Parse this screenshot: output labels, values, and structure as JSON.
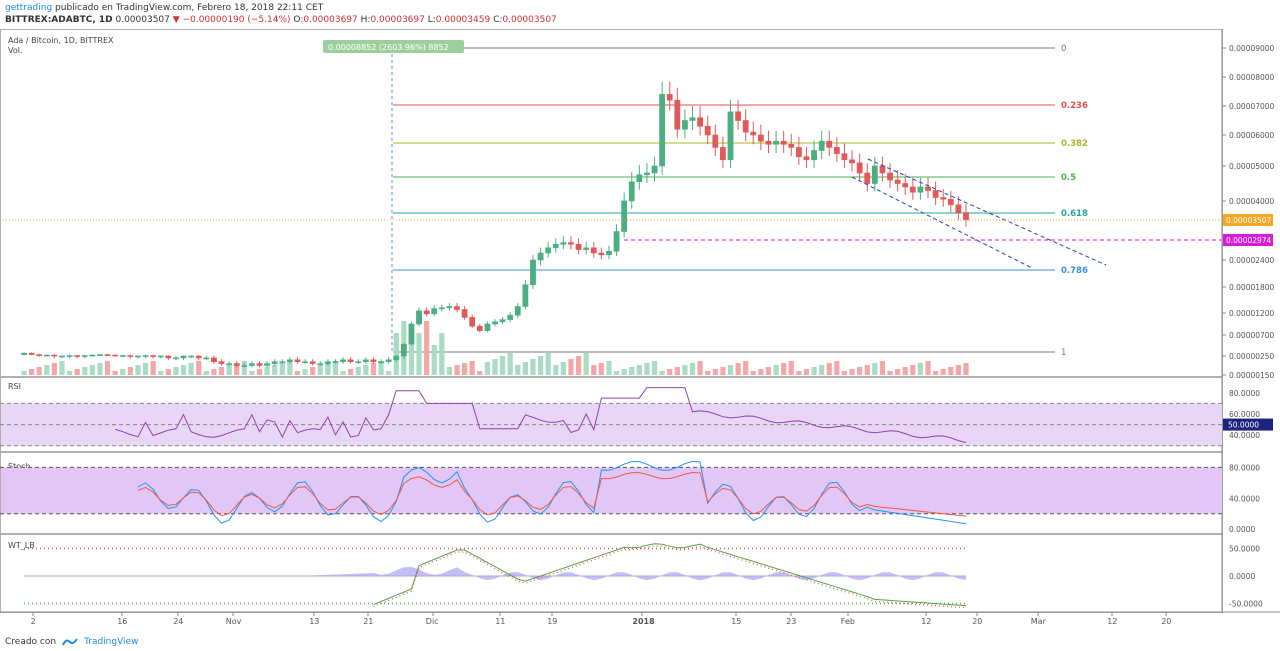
{
  "header": {
    "user": "gettrading",
    "published": "publicado en TradingView.com, Febrero 18, 2018 22:11 CET",
    "ticker": "BITTREX:ADABTC, 1D",
    "last": "0.00003507",
    "change": "−0.00000190 (−5.14%)",
    "ohlc": {
      "o_label": "O:",
      "o": "0.00003697",
      "h_label": "H:",
      "h": "0.00003697",
      "l_label": "L:",
      "l": "0.00003459",
      "c_label": "C:",
      "c": "0.00003507"
    }
  },
  "pane_titles": {
    "main": "Ada / Bitcoin, 1D, BITTREX",
    "vol": "Vol.",
    "rsi": "RSI",
    "stoch": "Stoch",
    "wt": "WT_LB"
  },
  "measure_label": "0.00008852 (2603.96%) 8852",
  "footer": {
    "created": "Creado con",
    "brand": "TradingView"
  },
  "colors": {
    "up": "#4caf82",
    "down": "#e05a5a",
    "up_fill": "#a9dbc5",
    "down_fill": "#f3a7a7",
    "rsi": "#8e44ad",
    "rsi_band": "#e9d5f5",
    "stoch_band": "#e2c6f6",
    "stoch_k": "#2196f3",
    "stoch_d": "#f05a4a",
    "wt1": "#5aa04a",
    "wt2": "#e05050",
    "wt_hist": "#a9a4f0",
    "channel": "#2541b2",
    "price_line": "#f5a623",
    "magenta": "#d81bd8"
  },
  "chart_data": [
    {
      "type": "candlestick",
      "title": "Ada / Bitcoin, 1D, BITTREX",
      "y_axis_ticks": [
        "0.00009000",
        "0.00008000",
        "0.00007000",
        "0.00006000",
        "0.00005000",
        "0.00004000",
        "0.00003507",
        "0.00002974",
        "0.00002400",
        "0.00001800",
        "0.00001200",
        "0.00000700",
        "0.00000250",
        "0.00000150"
      ],
      "last_price": "0.00003507",
      "marker_price": "0.00002974",
      "x_axis_ticks": [
        "2",
        "16",
        "24",
        "Nov",
        "13",
        "21",
        "Dic",
        "11",
        "19",
        "2018",
        "15",
        "23",
        "Feb",
        "12",
        "20",
        "Mar",
        "12",
        "20"
      ],
      "fibonacci_levels": [
        {
          "label": "0",
          "color": "#777777"
        },
        {
          "label": "0.236",
          "color": "#e05050"
        },
        {
          "label": "0.382",
          "color": "#a8b820"
        },
        {
          "label": "0.5",
          "color": "#4caf50"
        },
        {
          "label": "0.618",
          "color": "#26a69a"
        },
        {
          "label": "0.786",
          "color": "#3d8fd8"
        },
        {
          "label": "1",
          "color": "#777777"
        }
      ],
      "close": [
        3.1e-06,
        2.8e-06,
        2.6e-06,
        2.7e-06,
        2.5e-06,
        2.5e-06,
        2.6e-06,
        2.5e-06,
        2.6e-06,
        2.7e-06,
        2.8e-06,
        2.7e-06,
        2.6e-06,
        2.6e-06,
        2.5e-06,
        2.5e-06,
        2.6e-06,
        2.5e-06,
        2.5e-06,
        2.4e-06,
        2.4e-06,
        2.5e-06,
        2.5e-06,
        2.4e-06,
        2.4e-06,
        2.2e-06,
        2.1e-06,
        2.1e-06,
        2e-06,
        2e-06,
        2.1e-06,
        2e-06,
        2.1e-06,
        2.2e-06,
        2.2e-06,
        2.3e-06,
        2.2e-06,
        2.2e-06,
        2.1e-06,
        2.1e-06,
        2.2e-06,
        2.2e-06,
        2.3e-06,
        2.2e-06,
        2.2e-06,
        2.3e-06,
        2.2e-06,
        2.2e-06,
        2.3e-06,
        2.5e-06,
        5e-06,
        9.5e-06,
        1.25e-05,
        1.18e-05,
        1.3e-05,
        1.32e-05,
        1.35e-05,
        1.28e-05,
        1.1e-05,
        9e-06,
        8e-06,
        9.5e-06,
        1e-05,
        1.05e-05,
        1.15e-05,
        1.35e-05,
        1.85e-05,
        2.4e-05,
        2.6e-05,
        2.75e-05,
        2.85e-05,
        2.9e-05,
        2.85e-05,
        2.7e-05,
        2.75e-05,
        2.6e-05,
        2.55e-05,
        2.65e-05,
        3.2e-05,
        4e-05,
        4.55e-05,
        4.75e-05,
        4.8e-05,
        5e-05,
        7.4e-05,
        7.2e-05,
        6.2e-05,
        6.5e-05,
        6.6e-05,
        6.3e-05,
        6e-05,
        5.6e-05,
        5.2e-05,
        6.8e-05,
        6.5e-05,
        6.1e-05,
        6e-05,
        5.8e-05,
        5.7e-05,
        5.8e-05,
        5.7e-05,
        5.6e-05,
        5.3e-05,
        5.2e-05,
        5.5e-05,
        5.8e-05,
        5.6e-05,
        5.4e-05,
        5.2e-05,
        5.1e-05,
        4.8e-05,
        4.5e-05,
        5e-05,
        4.8e-05,
        4.6e-05,
        4.5e-05,
        4.4e-05,
        4.25e-05,
        4.4e-05,
        4.3e-05,
        4.1e-05,
        4.05e-05,
        3.9e-05,
        3.7e-05,
        3.51e-05
      ],
      "rsi": {
        "levels": [
          70,
          50,
          30
        ],
        "ticks": [
          "80.0000",
          "60.0000",
          "50.0000",
          "40.0000"
        ]
      },
      "stoch": {
        "levels": [
          80,
          20
        ],
        "ticks": [
          "80.0000",
          "40.0000",
          "0.0000"
        ]
      },
      "wt": {
        "levels": [
          53,
          0,
          -53
        ],
        "ticks": [
          "50.0000",
          "0.0000",
          "-50.0000"
        ]
      }
    }
  ]
}
